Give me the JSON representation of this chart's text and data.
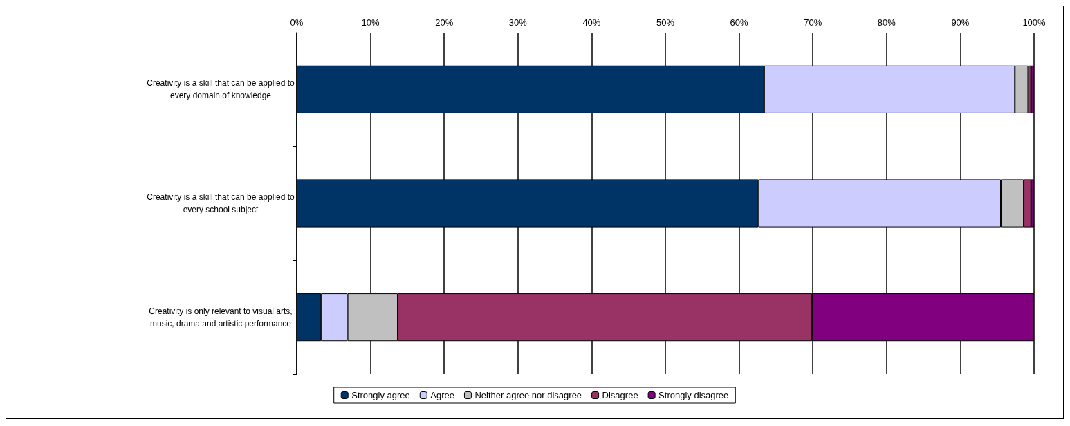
{
  "chart_data": {
    "type": "bar",
    "orientation": "horizontal",
    "stacked": true,
    "categories": [
      "Creativity is a skill that can be applied to\nevery domain of knowledge",
      "Creativity is a skill that can be applied to\nevery school subject",
      "Creativity is only relevant to visual arts,\nmusic, drama and artistic performance"
    ],
    "series": [
      {
        "name": "Strongly agree",
        "color": "#003366",
        "values": [
          63.4,
          62.6,
          3.3
        ]
      },
      {
        "name": "Agree",
        "color": "#ccccff",
        "values": [
          34.0,
          32.9,
          3.6
        ]
      },
      {
        "name": "Neither agree nor disagree",
        "color": "#c0c0c0",
        "values": [
          1.8,
          3.1,
          6.8
        ]
      },
      {
        "name": "Disagree",
        "color": "#993366",
        "values": [
          0.4,
          1.0,
          56.2
        ]
      },
      {
        "name": "Strongly disagree",
        "color": "#800080",
        "values": [
          0.4,
          0.4,
          30.1
        ]
      }
    ],
    "xlim": [
      0,
      100
    ],
    "xticks": [
      {
        "value": 0,
        "label": "0%"
      },
      {
        "value": 10,
        "label": "10%"
      },
      {
        "value": 20,
        "label": "20%"
      },
      {
        "value": 30,
        "label": "30%"
      },
      {
        "value": 40,
        "label": "40%"
      },
      {
        "value": 50,
        "label": "50%"
      },
      {
        "value": 60,
        "label": "60%"
      },
      {
        "value": 70,
        "label": "70%"
      },
      {
        "value": 80,
        "label": "80%"
      },
      {
        "value": 90,
        "label": "90%"
      },
      {
        "value": 100,
        "label": "100%"
      }
    ],
    "grid": "x",
    "legend": "bottom"
  }
}
